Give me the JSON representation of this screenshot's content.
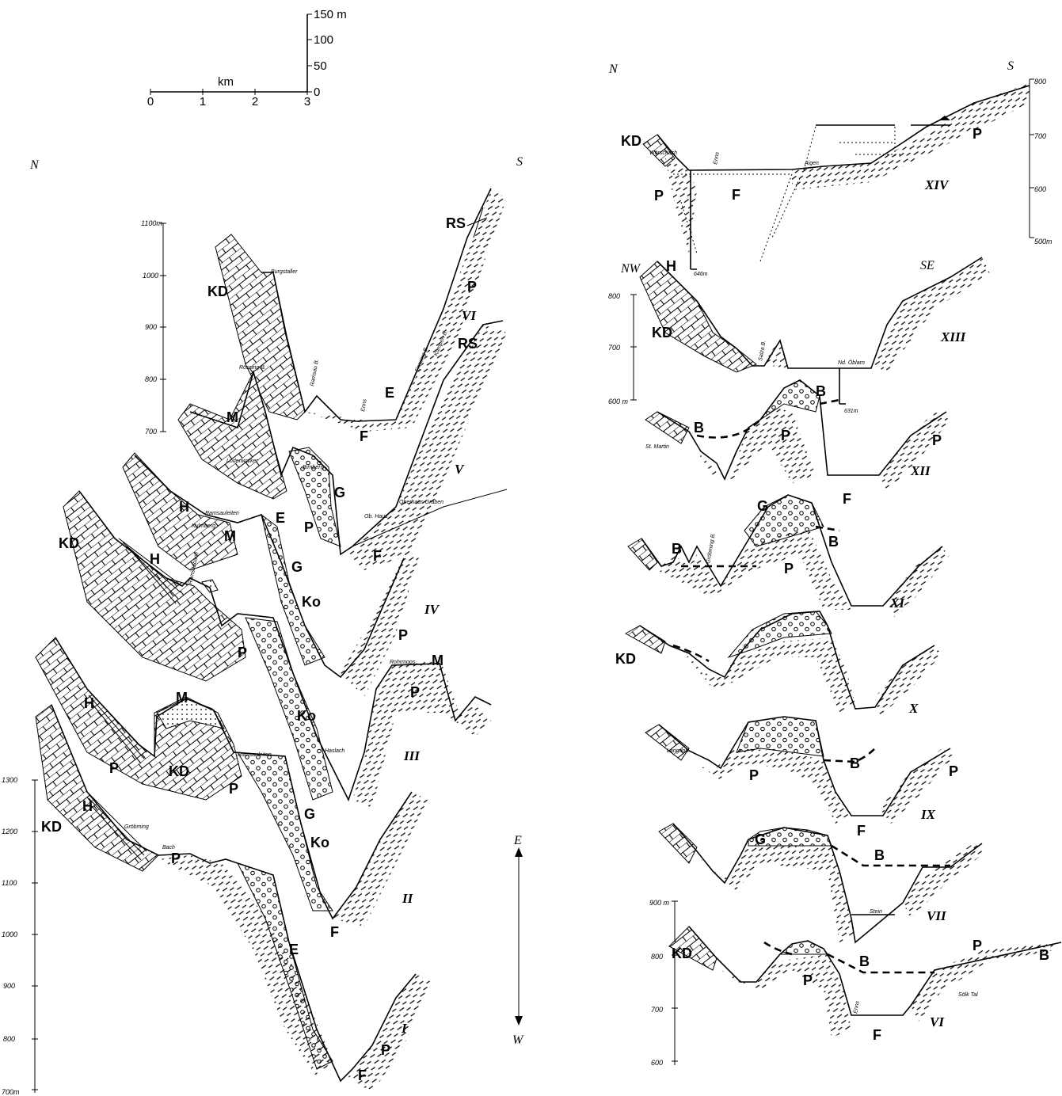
{
  "scale": {
    "unit": "km",
    "ticks": [
      "0",
      "1",
      "2",
      "3"
    ],
    "vertical_ticks": [
      "150 m",
      "100",
      "50",
      "0"
    ]
  },
  "left_panel": {
    "north": "N",
    "south": "S",
    "axis_ticks": [
      "1300",
      "1200",
      "1100",
      "1000",
      "900",
      "800",
      "700m"
    ],
    "axis2_ticks": [
      "1100m",
      "1000",
      "900",
      "800",
      "700"
    ],
    "direction_top": "E",
    "direction_bottom": "W",
    "profiles": [
      "VI",
      "V",
      "IV",
      "III",
      "II",
      "I"
    ],
    "labels": {
      "KD": "KD",
      "P": "P",
      "F": "F",
      "RS": "RS",
      "M": "M",
      "G": "G",
      "E": "E",
      "H": "H",
      "Ko": "Ko"
    },
    "place_names": [
      "Burgstaller",
      "Rössing B.",
      "Ramsau B.",
      "Enns",
      "Ennsing B.",
      "Kumpen B.",
      "Lodenwalker",
      "Birnberg",
      "Oberhaus Graben",
      "Ob. Haus",
      "Kulmberg",
      "Ramsauleiten",
      "Ramsaubach",
      "Rohrmoos",
      "Haslach",
      "Gröbming",
      "Bach",
      "Au"
    ]
  },
  "right_panel": {
    "north": "N",
    "south": "S",
    "northwest": "NW",
    "southeast": "SE",
    "axis_ticks": [
      "800",
      "700",
      "600",
      "500m"
    ],
    "axis2_ticks": [
      "800",
      "700",
      "600 m"
    ],
    "axis3_ticks": [
      "900 m",
      "800",
      "700",
      "600"
    ],
    "profiles": [
      "XIV",
      "XIII",
      "XII",
      "XI",
      "X",
      "IX",
      "VII",
      "VI"
    ],
    "labels": {
      "KD": "KD",
      "P": "P",
      "F": "F",
      "H": "H",
      "B": "B",
      "G": "G"
    },
    "place_names": [
      "Wörschach",
      "Aigen",
      "Enns",
      "Salza B.",
      "Nd. Öblarn",
      "St. Martin",
      "Gröbming B.",
      "Langdorf",
      "Stein",
      "Sölk Tal",
      "646m",
      "631m",
      "Enns"
    ]
  }
}
